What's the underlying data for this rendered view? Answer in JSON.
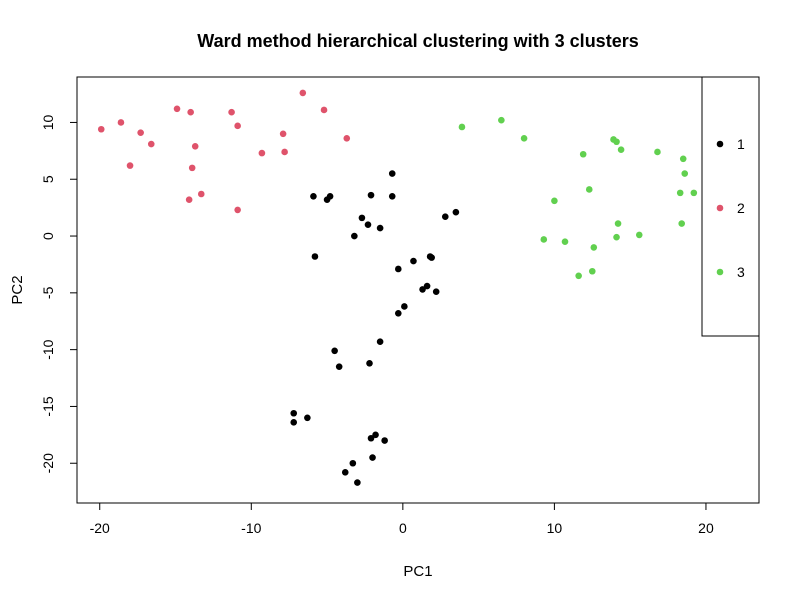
{
  "chart_data": {
    "type": "scatter",
    "title": "Ward method hierarchical clustering with 3 clusters",
    "xlabel": "PC1",
    "ylabel": "PC2",
    "xlim": [
      -21.5,
      23.5
    ],
    "ylim": [
      -23.5,
      14
    ],
    "x_ticks": [
      -20,
      -10,
      0,
      10,
      20
    ],
    "y_ticks": [
      -20,
      -15,
      -10,
      -5,
      0,
      5,
      10
    ],
    "x_tick_labels": [
      "-20",
      "-10",
      "0",
      "10",
      "20"
    ],
    "y_tick_labels": [
      "-20",
      "-15",
      "-10",
      "-5",
      "0",
      "5",
      "10"
    ],
    "grid": false,
    "legend_position": "right",
    "series": [
      {
        "name": "1",
        "color": "#000000",
        "points": [
          [
            -5.9,
            3.5
          ],
          [
            -5.0,
            3.2
          ],
          [
            -4.8,
            3.5
          ],
          [
            -2.1,
            3.6
          ],
          [
            -0.7,
            5.5
          ],
          [
            -0.7,
            3.5
          ],
          [
            -2.7,
            1.6
          ],
          [
            -2.3,
            1.0
          ],
          [
            -1.5,
            0.7
          ],
          [
            -3.2,
            0.0
          ],
          [
            2.8,
            1.7
          ],
          [
            3.5,
            2.1
          ],
          [
            -5.8,
            -1.8
          ],
          [
            0.7,
            -2.2
          ],
          [
            -0.3,
            -2.9
          ],
          [
            1.8,
            -1.8
          ],
          [
            1.9,
            -1.9
          ],
          [
            1.6,
            -4.4
          ],
          [
            1.3,
            -4.7
          ],
          [
            2.2,
            -4.9
          ],
          [
            0.1,
            -6.2
          ],
          [
            -0.3,
            -6.8
          ],
          [
            -1.5,
            -9.3
          ],
          [
            -4.5,
            -10.1
          ],
          [
            -4.2,
            -11.5
          ],
          [
            -2.2,
            -11.2
          ],
          [
            -7.2,
            -15.6
          ],
          [
            -7.2,
            -16.4
          ],
          [
            -6.3,
            -16.0
          ],
          [
            -1.8,
            -17.5
          ],
          [
            -2.1,
            -17.8
          ],
          [
            -1.2,
            -18.0
          ],
          [
            -2.0,
            -19.5
          ],
          [
            -3.3,
            -20.0
          ],
          [
            -3.8,
            -20.8
          ],
          [
            -3.0,
            -21.7
          ]
        ]
      },
      {
        "name": "2",
        "color": "#DF536B",
        "points": [
          [
            -19.9,
            9.4
          ],
          [
            -18.6,
            10.0
          ],
          [
            -17.3,
            9.1
          ],
          [
            -16.6,
            8.1
          ],
          [
            -18.0,
            6.2
          ],
          [
            -14.9,
            11.2
          ],
          [
            -14.0,
            10.9
          ],
          [
            -13.7,
            7.9
          ],
          [
            -13.9,
            6.0
          ],
          [
            -14.1,
            3.2
          ],
          [
            -13.3,
            3.7
          ],
          [
            -11.3,
            10.9
          ],
          [
            -10.9,
            9.7
          ],
          [
            -10.9,
            2.3
          ],
          [
            -9.3,
            7.3
          ],
          [
            -6.6,
            12.6
          ],
          [
            -5.2,
            11.1
          ],
          [
            -7.9,
            9.0
          ],
          [
            -7.8,
            7.4
          ],
          [
            -3.7,
            8.6
          ]
        ]
      },
      {
        "name": "3",
        "color": "#61D04F",
        "points": [
          [
            3.9,
            9.6
          ],
          [
            6.5,
            10.2
          ],
          [
            8.0,
            8.6
          ],
          [
            13.9,
            8.5
          ],
          [
            14.1,
            8.3
          ],
          [
            14.4,
            7.6
          ],
          [
            11.9,
            7.2
          ],
          [
            16.8,
            7.4
          ],
          [
            18.5,
            6.8
          ],
          [
            18.6,
            5.5
          ],
          [
            12.3,
            4.1
          ],
          [
            10.0,
            3.1
          ],
          [
            18.3,
            3.8
          ],
          [
            19.2,
            3.8
          ],
          [
            14.2,
            1.1
          ],
          [
            18.4,
            1.1
          ],
          [
            9.3,
            -0.3
          ],
          [
            10.7,
            -0.5
          ],
          [
            12.6,
            -1.0
          ],
          [
            14.1,
            -0.1
          ],
          [
            15.6,
            0.1
          ],
          [
            11.6,
            -3.5
          ],
          [
            12.5,
            -3.1
          ]
        ]
      }
    ]
  }
}
